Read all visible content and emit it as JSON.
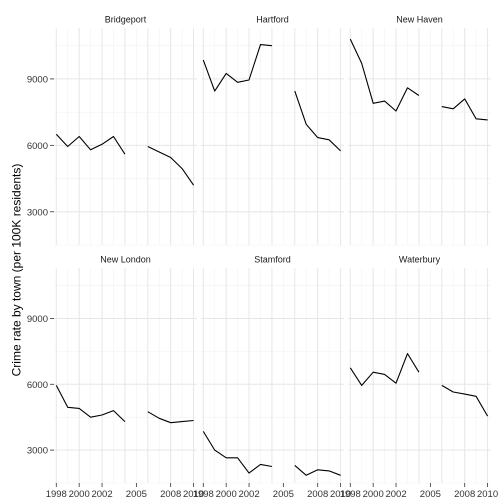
{
  "chart_data": {
    "type": "line",
    "ylabel": "Crime rate by town (per 100K residents)",
    "xlabel": "",
    "xlim": [
      1997.8,
      2010.3
    ],
    "ylim": [
      1500,
      11300
    ],
    "x_ticks": [
      1998,
      2000,
      2002,
      2005,
      2008,
      2010
    ],
    "y_ticks": [
      3000,
      6000,
      9000
    ],
    "grid": true,
    "facets": [
      {
        "name": "Bridgeport",
        "segments": [
          {
            "x": [
              1998,
              1999,
              2000,
              2001,
              2002,
              2003,
              2004
            ],
            "y": [
              6500,
              5950,
              6400,
              5800,
              6050,
              6400,
              5600
            ]
          },
          {
            "x": [
              2006,
              2007,
              2008,
              2009,
              2010
            ],
            "y": [
              5950,
              5700,
              5450,
              4950,
              4200
            ]
          }
        ]
      },
      {
        "name": "Hartford",
        "segments": [
          {
            "x": [
              1998,
              1999,
              2000,
              2001,
              2002,
              2003,
              2004
            ],
            "y": [
              9850,
              8450,
              9250,
              8850,
              8950,
              10550,
              10500
            ]
          },
          {
            "x": [
              2006,
              2007,
              2008,
              2009,
              2010
            ],
            "y": [
              8450,
              6950,
              6350,
              6250,
              5750
            ]
          }
        ]
      },
      {
        "name": "New Haven",
        "segments": [
          {
            "x": [
              1998,
              1999,
              2000,
              2001,
              2002,
              2003,
              2004
            ],
            "y": [
              10800,
              9700,
              7900,
              8000,
              7550,
              8600,
              8250
            ]
          },
          {
            "x": [
              2006,
              2007,
              2008,
              2009,
              2010
            ],
            "y": [
              7750,
              7650,
              8100,
              7200,
              7150
            ]
          }
        ]
      },
      {
        "name": "New London",
        "segments": [
          {
            "x": [
              1998,
              1999,
              2000,
              2001,
              2002,
              2003,
              2004
            ],
            "y": [
              5950,
              4950,
              4900,
              4500,
              4600,
              4800,
              4300
            ]
          },
          {
            "x": [
              2006,
              2007,
              2008,
              2009,
              2010
            ],
            "y": [
              4750,
              4450,
              4250,
              4300,
              4350
            ]
          }
        ]
      },
      {
        "name": "Stamford",
        "segments": [
          {
            "x": [
              1998,
              1999,
              2000,
              2001,
              2002,
              2003,
              2004
            ],
            "y": [
              3850,
              3000,
              2650,
              2650,
              1950,
              2350,
              2250
            ]
          },
          {
            "x": [
              2006,
              2007,
              2008,
              2009,
              2010
            ],
            "y": [
              2300,
              1850,
              2100,
              2050,
              1850
            ]
          }
        ]
      },
      {
        "name": "Waterbury",
        "segments": [
          {
            "x": [
              1998,
              1999,
              2000,
              2001,
              2002,
              2003,
              2004
            ],
            "y": [
              6750,
              5950,
              6550,
              6450,
              6050,
              7400,
              6550
            ]
          },
          {
            "x": [
              2006,
              2007,
              2008,
              2009,
              2010
            ],
            "y": [
              5950,
              5650,
              5550,
              5450,
              4550
            ]
          }
        ]
      }
    ]
  }
}
